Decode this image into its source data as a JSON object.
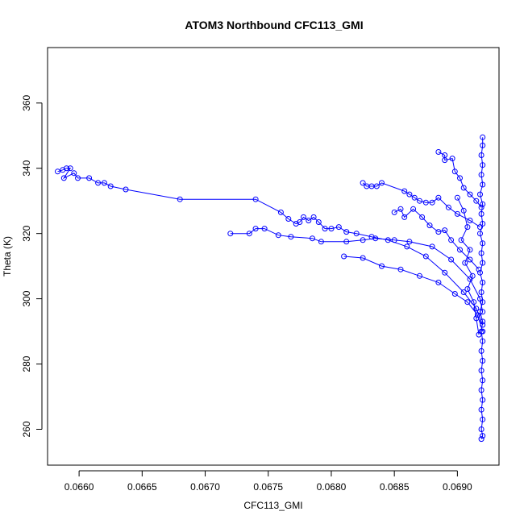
{
  "chart_data": {
    "type": "scatter",
    "title": "ATOM3 Northbound CFC113_GMI",
    "xlabel": "CFC113_GMI",
    "ylabel": "Theta (K)",
    "xlim": [
      0.06575,
      0.06933
    ],
    "ylim": [
      249,
      377
    ],
    "x_ticks": [
      {
        "value": 0.066,
        "label": "0.0660"
      },
      {
        "value": 0.0665,
        "label": "0.0665"
      },
      {
        "value": 0.067,
        "label": "0.0670"
      },
      {
        "value": 0.0675,
        "label": "0.0675"
      },
      {
        "value": 0.068,
        "label": "0.0680"
      },
      {
        "value": 0.0685,
        "label": "0.0685"
      },
      {
        "value": 0.069,
        "label": "0.0690"
      }
    ],
    "y_ticks": [
      {
        "value": 260,
        "label": "260"
      },
      {
        "value": 280,
        "label": "280"
      },
      {
        "value": 300,
        "label": "300"
      },
      {
        "value": 320,
        "label": "320"
      },
      {
        "value": 340,
        "label": "340"
      },
      {
        "value": 360,
        "label": "360"
      }
    ],
    "marker": "open-circle",
    "connected": true,
    "grid": false,
    "color": "#0000ff",
    "series": [
      {
        "points": [
          {
            "x": 0.06583,
            "y": 339
          },
          {
            "x": 0.06587,
            "y": 339.5
          },
          {
            "x": 0.0659,
            "y": 340
          },
          {
            "x": 0.06593,
            "y": 340
          },
          {
            "x": 0.06588,
            "y": 337
          },
          {
            "x": 0.06596,
            "y": 338.5
          },
          {
            "x": 0.06599,
            "y": 337
          },
          {
            "x": 0.06608,
            "y": 337
          },
          {
            "x": 0.06615,
            "y": 335.5
          },
          {
            "x": 0.0662,
            "y": 335.5
          },
          {
            "x": 0.06625,
            "y": 334.5
          },
          {
            "x": 0.06637,
            "y": 333.5
          },
          {
            "x": 0.0668,
            "y": 330.5
          },
          {
            "x": 0.0674,
            "y": 330.5
          },
          {
            "x": 0.0676,
            "y": 326.5
          },
          {
            "x": 0.06766,
            "y": 324.5
          },
          {
            "x": 0.06772,
            "y": 323
          },
          {
            "x": 0.06775,
            "y": 323.5
          },
          {
            "x": 0.06778,
            "y": 325
          },
          {
            "x": 0.06782,
            "y": 324
          },
          {
            "x": 0.06786,
            "y": 325
          },
          {
            "x": 0.0679,
            "y": 323.5
          },
          {
            "x": 0.06795,
            "y": 321.5
          },
          {
            "x": 0.068,
            "y": 321.5
          },
          {
            "x": 0.06806,
            "y": 322
          },
          {
            "x": 0.06812,
            "y": 320.5
          },
          {
            "x": 0.0682,
            "y": 320
          },
          {
            "x": 0.06832,
            "y": 319
          },
          {
            "x": 0.06845,
            "y": 318
          },
          {
            "x": 0.0686,
            "y": 316
          },
          {
            "x": 0.06875,
            "y": 313
          },
          {
            "x": 0.0689,
            "y": 308
          },
          {
            "x": 0.06905,
            "y": 302
          },
          {
            "x": 0.06915,
            "y": 297
          },
          {
            "x": 0.0692,
            "y": 292
          }
        ]
      },
      {
        "points": [
          {
            "x": 0.0672,
            "y": 320
          },
          {
            "x": 0.06735,
            "y": 320
          },
          {
            "x": 0.0674,
            "y": 321.5
          },
          {
            "x": 0.06747,
            "y": 321.5
          },
          {
            "x": 0.06758,
            "y": 319.5
          },
          {
            "x": 0.06768,
            "y": 319
          },
          {
            "x": 0.06785,
            "y": 318.5
          },
          {
            "x": 0.06792,
            "y": 317.5
          },
          {
            "x": 0.06812,
            "y": 317.5
          },
          {
            "x": 0.06825,
            "y": 318
          },
          {
            "x": 0.06835,
            "y": 318.5
          },
          {
            "x": 0.0685,
            "y": 318
          },
          {
            "x": 0.06862,
            "y": 317.5
          },
          {
            "x": 0.0688,
            "y": 316
          },
          {
            "x": 0.06895,
            "y": 312
          },
          {
            "x": 0.0691,
            "y": 306
          },
          {
            "x": 0.06918,
            "y": 300
          },
          {
            "x": 0.0692,
            "y": 296
          }
        ]
      },
      {
        "points": [
          {
            "x": 0.06825,
            "y": 335.5
          },
          {
            "x": 0.06828,
            "y": 334.5
          },
          {
            "x": 0.06832,
            "y": 334.5
          },
          {
            "x": 0.06836,
            "y": 334.5
          },
          {
            "x": 0.0684,
            "y": 335.5
          },
          {
            "x": 0.06858,
            "y": 333
          },
          {
            "x": 0.06862,
            "y": 332
          },
          {
            "x": 0.06866,
            "y": 331
          },
          {
            "x": 0.0687,
            "y": 330
          },
          {
            "x": 0.06875,
            "y": 329.5
          },
          {
            "x": 0.0688,
            "y": 329.5
          },
          {
            "x": 0.06885,
            "y": 331
          },
          {
            "x": 0.06893,
            "y": 328
          },
          {
            "x": 0.069,
            "y": 326
          },
          {
            "x": 0.0691,
            "y": 324
          },
          {
            "x": 0.06918,
            "y": 322
          }
        ]
      },
      {
        "points": [
          {
            "x": 0.06885,
            "y": 345
          },
          {
            "x": 0.0689,
            "y": 344
          },
          {
            "x": 0.0689,
            "y": 342.5
          },
          {
            "x": 0.06896,
            "y": 343
          },
          {
            "x": 0.06898,
            "y": 339
          },
          {
            "x": 0.06902,
            "y": 337
          },
          {
            "x": 0.06905,
            "y": 334
          },
          {
            "x": 0.0691,
            "y": 332
          },
          {
            "x": 0.06915,
            "y": 330
          },
          {
            "x": 0.06919,
            "y": 328
          }
        ]
      },
      {
        "points": [
          {
            "x": 0.0681,
            "y": 313
          },
          {
            "x": 0.06825,
            "y": 312.5
          },
          {
            "x": 0.0684,
            "y": 310
          },
          {
            "x": 0.06855,
            "y": 309
          },
          {
            "x": 0.0687,
            "y": 307
          },
          {
            "x": 0.06885,
            "y": 305
          },
          {
            "x": 0.06898,
            "y": 301.5
          },
          {
            "x": 0.06908,
            "y": 299
          },
          {
            "x": 0.06916,
            "y": 295
          },
          {
            "x": 0.0692,
            "y": 290
          }
        ]
      },
      {
        "points": [
          {
            "x": 0.0685,
            "y": 326.5
          },
          {
            "x": 0.06855,
            "y": 327.5
          },
          {
            "x": 0.06858,
            "y": 325
          },
          {
            "x": 0.06865,
            "y": 327.5
          },
          {
            "x": 0.06872,
            "y": 325
          },
          {
            "x": 0.06878,
            "y": 322.5
          },
          {
            "x": 0.06885,
            "y": 320.5
          },
          {
            "x": 0.0689,
            "y": 321
          },
          {
            "x": 0.06895,
            "y": 318
          },
          {
            "x": 0.06902,
            "y": 315
          },
          {
            "x": 0.0691,
            "y": 312
          },
          {
            "x": 0.06917,
            "y": 309
          }
        ]
      },
      {
        "points": [
          {
            "x": 0.0692,
            "y": 349.5
          },
          {
            "x": 0.0692,
            "y": 347
          },
          {
            "x": 0.06919,
            "y": 344
          },
          {
            "x": 0.0692,
            "y": 341
          },
          {
            "x": 0.06919,
            "y": 338
          },
          {
            "x": 0.0692,
            "y": 335
          },
          {
            "x": 0.06918,
            "y": 332
          },
          {
            "x": 0.0692,
            "y": 329
          },
          {
            "x": 0.06919,
            "y": 326
          },
          {
            "x": 0.0692,
            "y": 323
          },
          {
            "x": 0.06918,
            "y": 320
          },
          {
            "x": 0.0692,
            "y": 317
          },
          {
            "x": 0.06919,
            "y": 314
          },
          {
            "x": 0.0692,
            "y": 311
          },
          {
            "x": 0.06918,
            "y": 308
          },
          {
            "x": 0.0692,
            "y": 305
          },
          {
            "x": 0.06919,
            "y": 302
          },
          {
            "x": 0.0692,
            "y": 299
          },
          {
            "x": 0.06918,
            "y": 296
          },
          {
            "x": 0.0692,
            "y": 293
          },
          {
            "x": 0.06919,
            "y": 290
          },
          {
            "x": 0.0692,
            "y": 287
          },
          {
            "x": 0.06919,
            "y": 284
          },
          {
            "x": 0.0692,
            "y": 281
          },
          {
            "x": 0.06919,
            "y": 278
          },
          {
            "x": 0.0692,
            "y": 275
          },
          {
            "x": 0.06919,
            "y": 272
          },
          {
            "x": 0.0692,
            "y": 269
          },
          {
            "x": 0.06919,
            "y": 266
          },
          {
            "x": 0.0692,
            "y": 263
          },
          {
            "x": 0.06919,
            "y": 260
          },
          {
            "x": 0.0692,
            "y": 258
          },
          {
            "x": 0.06919,
            "y": 257
          }
        ]
      },
      {
        "points": [
          {
            "x": 0.069,
            "y": 331
          },
          {
            "x": 0.06905,
            "y": 327
          },
          {
            "x": 0.06908,
            "y": 322
          },
          {
            "x": 0.06903,
            "y": 318
          },
          {
            "x": 0.0691,
            "y": 315
          },
          {
            "x": 0.06906,
            "y": 311
          },
          {
            "x": 0.06912,
            "y": 307
          },
          {
            "x": 0.06908,
            "y": 303
          },
          {
            "x": 0.06913,
            "y": 299
          },
          {
            "x": 0.06915,
            "y": 294
          },
          {
            "x": 0.06917,
            "y": 289
          }
        ]
      }
    ]
  }
}
